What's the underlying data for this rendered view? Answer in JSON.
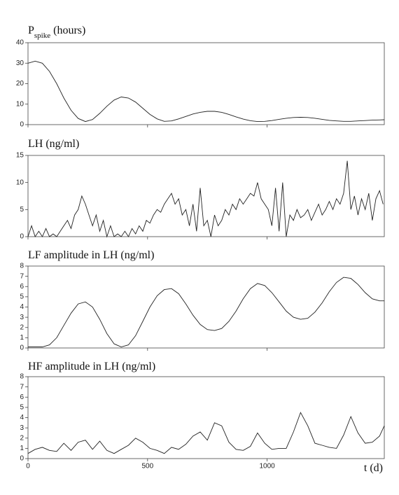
{
  "chart_data": [
    {
      "type": "line",
      "title": {
        "main": "P",
        "subscript": "spike",
        "rest": " (hours)"
      },
      "xlim": [
        0,
        1490
      ],
      "ylim": [
        0,
        40
      ],
      "yticks": [
        0,
        10,
        20,
        30,
        40
      ],
      "series": [
        {
          "color": "#222",
          "x": [
            0,
            30,
            60,
            90,
            120,
            150,
            180,
            210,
            240,
            270,
            300,
            330,
            360,
            390,
            420,
            450,
            480,
            510,
            540,
            570,
            600,
            630,
            660,
            690,
            720,
            750,
            780,
            810,
            840,
            870,
            900,
            930,
            960,
            990,
            1020,
            1050,
            1080,
            1110,
            1140,
            1170,
            1200,
            1230,
            1260,
            1290,
            1320,
            1350,
            1380,
            1410,
            1440,
            1470,
            1490
          ],
          "values": [
            30,
            31,
            30,
            26,
            20,
            13,
            7,
            3,
            1.5,
            2.5,
            5.5,
            9,
            12,
            13.5,
            13,
            11,
            8,
            5,
            2.8,
            1.6,
            1.8,
            2.8,
            4,
            5.2,
            6,
            6.5,
            6.5,
            6,
            5,
            3.8,
            2.7,
            1.9,
            1.5,
            1.6,
            2,
            2.6,
            3.1,
            3.5,
            3.6,
            3.5,
            3.1,
            2.6,
            2.1,
            1.8,
            1.6,
            1.6,
            1.8,
            2,
            2.2,
            2.3,
            2.4
          ]
        }
      ]
    },
    {
      "type": "line",
      "title": "LH (ng/ml)",
      "xlim": [
        0,
        1490
      ],
      "ylim": [
        0,
        15
      ],
      "yticks": [
        0,
        5,
        10,
        15
      ],
      "series": [
        {
          "color": "#222",
          "x": [
            0,
            15,
            30,
            45,
            60,
            75,
            90,
            105,
            120,
            135,
            150,
            165,
            180,
            195,
            210,
            225,
            240,
            255,
            270,
            285,
            300,
            315,
            330,
            345,
            360,
            375,
            390,
            405,
            420,
            435,
            450,
            465,
            480,
            495,
            510,
            525,
            540,
            555,
            570,
            585,
            600,
            615,
            630,
            645,
            660,
            675,
            690,
            705,
            720,
            735,
            750,
            765,
            780,
            795,
            810,
            825,
            840,
            855,
            870,
            885,
            900,
            915,
            930,
            945,
            960,
            975,
            990,
            1005,
            1020,
            1035,
            1050,
            1065,
            1080,
            1095,
            1110,
            1125,
            1140,
            1155,
            1170,
            1185,
            1200,
            1215,
            1230,
            1245,
            1260,
            1275,
            1290,
            1305,
            1320,
            1335,
            1350,
            1365,
            1380,
            1395,
            1410,
            1425,
            1440,
            1455,
            1470,
            1485
          ],
          "values": [
            0,
            2,
            0,
            1,
            0,
            1.5,
            0,
            0.5,
            0,
            1,
            2,
            3,
            1.5,
            4,
            5,
            7.5,
            6,
            4,
            2,
            4,
            1,
            3,
            0,
            2,
            0,
            0.5,
            0,
            1,
            0,
            1.5,
            0.5,
            2,
            1,
            3,
            2.5,
            4,
            5,
            4.5,
            6,
            7,
            8,
            6,
            7,
            4,
            5,
            2,
            6,
            1,
            9,
            2,
            3,
            0,
            4,
            2,
            3,
            5,
            4,
            6,
            5,
            7,
            6,
            7,
            8,
            7.5,
            10,
            7,
            6,
            5,
            2,
            9,
            1,
            10,
            0,
            4,
            3,
            5,
            3.5,
            4,
            5,
            3,
            4.5,
            6,
            4,
            5,
            6.5,
            5,
            7,
            6,
            8,
            14,
            5,
            7.5,
            4,
            7,
            5,
            8,
            3,
            7,
            8.5,
            6
          ]
        }
      ]
    },
    {
      "type": "line",
      "title": "LF amplitude in LH (ng/ml)",
      "xlim": [
        0,
        1490
      ],
      "ylim": [
        0,
        8
      ],
      "yticks": [
        0,
        1,
        2,
        3,
        4,
        5,
        6,
        7,
        8
      ],
      "series": [
        {
          "color": "#222",
          "x": [
            0,
            30,
            60,
            90,
            120,
            150,
            180,
            210,
            240,
            270,
            300,
            330,
            360,
            390,
            420,
            450,
            480,
            510,
            540,
            570,
            600,
            630,
            660,
            690,
            720,
            750,
            780,
            810,
            840,
            870,
            900,
            930,
            960,
            990,
            1020,
            1050,
            1080,
            1110,
            1140,
            1170,
            1200,
            1230,
            1260,
            1290,
            1320,
            1350,
            1380,
            1410,
            1440,
            1470,
            1490
          ],
          "values": [
            0.1,
            0.1,
            0.1,
            0.3,
            1,
            2.2,
            3.4,
            4.3,
            4.5,
            4,
            2.8,
            1.4,
            0.4,
            0.1,
            0.3,
            1.2,
            2.6,
            4,
            5.1,
            5.7,
            5.8,
            5.3,
            4.3,
            3.2,
            2.3,
            1.8,
            1.7,
            1.9,
            2.6,
            3.6,
            4.8,
            5.8,
            6.3,
            6.1,
            5.4,
            4.5,
            3.6,
            3,
            2.8,
            2.9,
            3.5,
            4.4,
            5.5,
            6.4,
            6.9,
            6.8,
            6.2,
            5.4,
            4.8,
            4.6,
            4.6
          ]
        }
      ]
    },
    {
      "type": "line",
      "title": "HF amplitude in LH (ng/ml)",
      "x_label": "t (d)",
      "xlim": [
        0,
        1490
      ],
      "xticks": [
        0,
        500,
        1000
      ],
      "ylim": [
        0,
        8
      ],
      "yticks": [
        0,
        1,
        2,
        3,
        4,
        5,
        6,
        7,
        8
      ],
      "series": [
        {
          "color": "#222",
          "x": [
            0,
            30,
            60,
            90,
            120,
            150,
            180,
            210,
            240,
            270,
            300,
            330,
            360,
            390,
            420,
            450,
            480,
            510,
            540,
            570,
            600,
            630,
            660,
            690,
            720,
            750,
            780,
            810,
            840,
            870,
            900,
            930,
            960,
            990,
            1020,
            1050,
            1080,
            1110,
            1140,
            1170,
            1200,
            1230,
            1260,
            1290,
            1320,
            1350,
            1380,
            1410,
            1440,
            1470,
            1490
          ],
          "values": [
            0.5,
            0.9,
            1.1,
            0.8,
            0.7,
            1.5,
            0.8,
            1.6,
            1.8,
            0.9,
            1.7,
            0.8,
            0.5,
            0.9,
            1.3,
            2,
            1.6,
            1,
            0.8,
            0.5,
            1.1,
            0.9,
            1.4,
            2.2,
            2.6,
            1.8,
            3.5,
            3.2,
            1.6,
            0.9,
            0.8,
            1.2,
            2.5,
            1.5,
            0.9,
            1,
            1,
            2.6,
            4.5,
            3.2,
            1.5,
            1.3,
            1.1,
            1,
            2.3,
            4.1,
            2.5,
            1.5,
            1.6,
            2.2,
            3.2
          ]
        }
      ]
    }
  ]
}
